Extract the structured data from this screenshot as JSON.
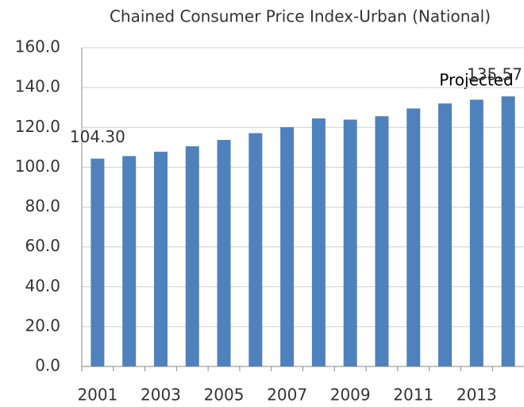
{
  "chart_data": {
    "type": "bar",
    "title": "Chained Consumer Price Index-Urban (National)",
    "categories": [
      "2001",
      null,
      "2003",
      null,
      "2005",
      null,
      "2007",
      null,
      "2009",
      null,
      "2011",
      null,
      "2013",
      null
    ],
    "values": [
      104.3,
      105.6,
      107.8,
      110.5,
      113.7,
      117.1,
      120.1,
      124.5,
      123.9,
      125.6,
      129.5,
      132.0,
      133.9,
      135.57
    ],
    "value_labels": [
      "104.30",
      null,
      null,
      null,
      null,
      null,
      null,
      null,
      null,
      null,
      null,
      null,
      null,
      "135.57"
    ],
    "annotation": "Projected",
    "color": "#4f81bd",
    "ylim": [
      0,
      160
    ],
    "yticks": [
      {
        "value": 0,
        "label": "0.0"
      },
      {
        "value": 20,
        "label": "20.0"
      },
      {
        "value": 40,
        "label": "40.0"
      },
      {
        "value": 60,
        "label": "60.0"
      },
      {
        "value": 80,
        "label": "80.0"
      },
      {
        "value": 100,
        "label": "100.0"
      },
      {
        "value": 120,
        "label": "120.0"
      },
      {
        "value": 140,
        "label": "140.0"
      },
      {
        "value": 160,
        "label": "160.0"
      }
    ],
    "grid": true
  }
}
